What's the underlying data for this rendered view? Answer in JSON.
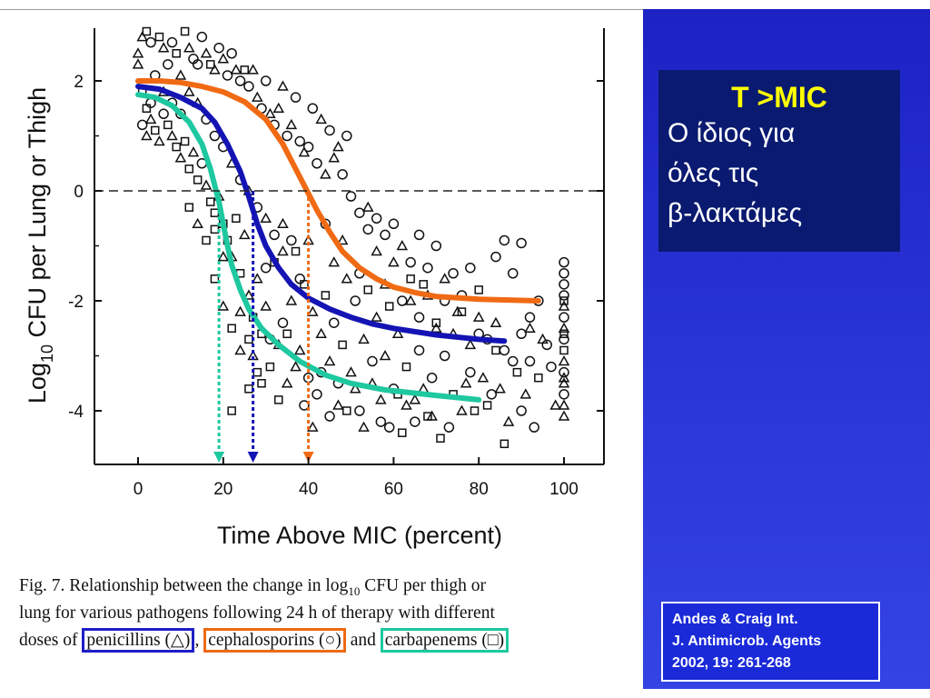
{
  "slide": {
    "title": "T >MIC",
    "subtitle_lines": [
      "Ο ίδιος για",
      "όλες τις",
      "β-λακτάμες"
    ],
    "reference_lines": [
      "Andes & Craig Int.",
      "J. Antimicrob. Agents",
      "2002, 19: 261-268"
    ],
    "caption": {
      "line1_a": "Fig. 7. Relationship between the change in log",
      "line1_sub": "10",
      "line1_b": " CFU per thigh or",
      "line2": "lung for various pathogens following 24 h of therapy with different",
      "line3_a": "doses of",
      "penicillins": "penicillins (△)",
      "sep1": ",",
      "cephalosporins": "cephalosporins (○)",
      "sep2": "and",
      "carbapenems": "carbapenems (□)"
    }
  },
  "chart_data": {
    "type": "scatter",
    "xlabel": "Time Above MIC (percent)",
    "ylabel_main": "Log",
    "ylabel_sub": "10",
    "ylabel_rest": " CFU per Lung or Thigh",
    "xlim": [
      -5,
      110
    ],
    "ylim": [
      -5,
      3
    ],
    "xticks": [
      0,
      20,
      40,
      60,
      80,
      100
    ],
    "yticks": [
      2,
      0,
      -2,
      -4
    ],
    "reference_line_y": 0,
    "colors": {
      "penicillins": "#1414b4",
      "cephalosporins": "#f06a14",
      "carbapenems": "#1ec8a0"
    },
    "series": [
      {
        "marker": "triangle",
        "color": "#1414b4",
        "curve": [
          [
            0,
            1.9
          ],
          [
            5,
            1.85
          ],
          [
            10,
            1.7
          ],
          [
            15,
            1.5
          ],
          [
            18,
            1.25
          ],
          [
            21,
            0.85
          ],
          [
            24,
            0.35
          ],
          [
            26,
            -0.1
          ],
          [
            28,
            -0.6
          ],
          [
            30,
            -1.0
          ],
          [
            33,
            -1.4
          ],
          [
            36,
            -1.7
          ],
          [
            40,
            -1.95
          ],
          [
            45,
            -2.15
          ],
          [
            50,
            -2.3
          ],
          [
            55,
            -2.42
          ],
          [
            60,
            -2.5
          ],
          [
            70,
            -2.62
          ],
          [
            80,
            -2.7
          ],
          [
            86,
            -2.73
          ]
        ],
        "mic_target_x": 27
      },
      {
        "marker": "circle",
        "color": "#f06a14",
        "curve": [
          [
            0,
            2.0
          ],
          [
            5,
            2.0
          ],
          [
            10,
            1.97
          ],
          [
            15,
            1.9
          ],
          [
            20,
            1.8
          ],
          [
            25,
            1.62
          ],
          [
            30,
            1.3
          ],
          [
            34,
            0.85
          ],
          [
            37,
            0.4
          ],
          [
            40,
            -0.05
          ],
          [
            42,
            -0.35
          ],
          [
            45,
            -0.75
          ],
          [
            48,
            -1.1
          ],
          [
            52,
            -1.4
          ],
          [
            56,
            -1.6
          ],
          [
            60,
            -1.75
          ],
          [
            65,
            -1.85
          ],
          [
            70,
            -1.92
          ],
          [
            80,
            -1.97
          ],
          [
            94,
            -2.0
          ]
        ],
        "mic_target_x": 40
      },
      {
        "marker": "square",
        "color": "#1ec8a0",
        "curve": [
          [
            0,
            1.75
          ],
          [
            4,
            1.7
          ],
          [
            8,
            1.55
          ],
          [
            12,
            1.25
          ],
          [
            15,
            0.85
          ],
          [
            17,
            0.4
          ],
          [
            19,
            -0.2
          ],
          [
            20,
            -0.6
          ],
          [
            21,
            -1.0
          ],
          [
            22,
            -1.35
          ],
          [
            24,
            -1.8
          ],
          [
            26,
            -2.15
          ],
          [
            29,
            -2.5
          ],
          [
            33,
            -2.8
          ],
          [
            38,
            -3.1
          ],
          [
            44,
            -3.35
          ],
          [
            50,
            -3.5
          ],
          [
            58,
            -3.62
          ],
          [
            70,
            -3.72
          ],
          [
            80,
            -3.8
          ]
        ],
        "mic_target_x": 19
      }
    ],
    "points": [
      [
        0,
        2.5,
        "t"
      ],
      [
        0,
        2.3,
        "t"
      ],
      [
        1,
        2.8,
        "t"
      ],
      [
        2,
        2.9,
        "s"
      ],
      [
        3,
        2.7,
        "c"
      ],
      [
        5,
        2.8,
        "s"
      ],
      [
        6,
        2.6,
        "t"
      ],
      [
        8,
        2.7,
        "c"
      ],
      [
        9,
        2.5,
        "s"
      ],
      [
        11,
        2.9,
        "s"
      ],
      [
        12,
        2.6,
        "t"
      ],
      [
        13,
        2.4,
        "c"
      ],
      [
        15,
        2.8,
        "c"
      ],
      [
        16,
        2.5,
        "t"
      ],
      [
        17,
        2.3,
        "s"
      ],
      [
        19,
        2.6,
        "c"
      ],
      [
        20,
        2.4,
        "t"
      ],
      [
        22,
        2.5,
        "c"
      ],
      [
        23,
        2.2,
        "t"
      ],
      [
        24,
        2.0,
        "c"
      ],
      [
        25,
        2.2,
        "s"
      ],
      [
        26,
        1.9,
        "c"
      ],
      [
        28,
        1.7,
        "t"
      ],
      [
        29,
        1.5,
        "c"
      ],
      [
        31,
        1.4,
        "t"
      ],
      [
        32,
        1.2,
        "c"
      ],
      [
        33,
        1.5,
        "t"
      ],
      [
        35,
        1.0,
        "c"
      ],
      [
        36,
        1.2,
        "t"
      ],
      [
        38,
        0.9,
        "c"
      ],
      [
        39,
        0.7,
        "t"
      ],
      [
        40,
        0.8,
        "c"
      ],
      [
        42,
        0.5,
        "c"
      ],
      [
        44,
        0.3,
        "t"
      ],
      [
        46,
        0.6,
        "t"
      ],
      [
        48,
        0.3,
        "c"
      ],
      [
        50,
        -0.1,
        "c"
      ],
      [
        52,
        -0.4,
        "c"
      ],
      [
        54,
        -0.3,
        "t"
      ],
      [
        56,
        -0.5,
        "c"
      ],
      [
        58,
        -0.8,
        "c"
      ],
      [
        60,
        -0.6,
        "c"
      ],
      [
        62,
        -1.0,
        "t"
      ],
      [
        64,
        -1.3,
        "c"
      ],
      [
        66,
        -0.8,
        "c"
      ],
      [
        68,
        -1.4,
        "c"
      ],
      [
        70,
        -1.0,
        "c"
      ],
      [
        72,
        -1.6,
        "t"
      ],
      [
        74,
        -1.5,
        "c"
      ],
      [
        76,
        -1.9,
        "c"
      ],
      [
        78,
        -1.4,
        "c"
      ],
      [
        80,
        -1.8,
        "s"
      ],
      [
        84,
        -1.2,
        "c"
      ],
      [
        86,
        -0.9,
        "c"
      ],
      [
        88,
        -1.5,
        "c"
      ],
      [
        90,
        -0.95,
        "c"
      ],
      [
        92,
        -2.5,
        "t"
      ],
      [
        94,
        -2.0,
        "c"
      ],
      [
        2,
        1.5,
        "s"
      ],
      [
        3,
        1.3,
        "t"
      ],
      [
        4,
        1.1,
        "s"
      ],
      [
        5,
        0.9,
        "t"
      ],
      [
        6,
        1.4,
        "c"
      ],
      [
        7,
        1.2,
        "s"
      ],
      [
        8,
        1.0,
        "t"
      ],
      [
        9,
        0.8,
        "s"
      ],
      [
        10,
        0.6,
        "t"
      ],
      [
        11,
        0.9,
        "s"
      ],
      [
        12,
        0.4,
        "s"
      ],
      [
        13,
        0.7,
        "t"
      ],
      [
        14,
        0.2,
        "s"
      ],
      [
        15,
        0.5,
        "c"
      ],
      [
        16,
        0.1,
        "t"
      ],
      [
        17,
        -0.2,
        "s"
      ],
      [
        18,
        -0.4,
        "s"
      ],
      [
        19,
        -0.1,
        "t"
      ],
      [
        20,
        -0.6,
        "s"
      ],
      [
        21,
        -0.9,
        "s"
      ],
      [
        22,
        -1.2,
        "t"
      ],
      [
        23,
        -0.5,
        "s"
      ],
      [
        24,
        -1.5,
        "s"
      ],
      [
        25,
        -0.8,
        "t"
      ],
      [
        26,
        -1.9,
        "t"
      ],
      [
        27,
        -2.3,
        "s"
      ],
      [
        28,
        -1.6,
        "t"
      ],
      [
        29,
        -2.6,
        "s"
      ],
      [
        30,
        -2.1,
        "t"
      ],
      [
        31,
        -3.2,
        "s"
      ],
      [
        32,
        -1.3,
        "s"
      ],
      [
        33,
        -2.8,
        "t"
      ],
      [
        34,
        -2.4,
        "c"
      ],
      [
        35,
        -3.5,
        "t"
      ],
      [
        36,
        -2.0,
        "t"
      ],
      [
        37,
        -1.1,
        "s"
      ],
      [
        38,
        -2.9,
        "t"
      ],
      [
        39,
        -1.7,
        "s"
      ],
      [
        40,
        -3.4,
        "c"
      ],
      [
        41,
        -2.2,
        "t"
      ],
      [
        42,
        -3.7,
        "c"
      ],
      [
        43,
        -2.6,
        "t"
      ],
      [
        44,
        -1.9,
        "s"
      ],
      [
        45,
        -3.1,
        "t"
      ],
      [
        46,
        -2.4,
        "c"
      ],
      [
        47,
        -3.9,
        "t"
      ],
      [
        48,
        -2.8,
        "s"
      ],
      [
        49,
        -1.6,
        "t"
      ],
      [
        50,
        -3.3,
        "t"
      ],
      [
        51,
        -2.0,
        "c"
      ],
      [
        52,
        -4.0,
        "c"
      ],
      [
        53,
        -2.7,
        "t"
      ],
      [
        54,
        -1.8,
        "s"
      ],
      [
        55,
        -3.5,
        "t"
      ],
      [
        56,
        -2.3,
        "t"
      ],
      [
        57,
        -4.2,
        "c"
      ],
      [
        58,
        -3.0,
        "t"
      ],
      [
        59,
        -2.1,
        "s"
      ],
      [
        60,
        -3.6,
        "c"
      ],
      [
        61,
        -2.6,
        "t"
      ],
      [
        62,
        -4.4,
        "s"
      ],
      [
        63,
        -3.2,
        "s"
      ],
      [
        64,
        -2.0,
        "t"
      ],
      [
        65,
        -3.8,
        "t"
      ],
      [
        66,
        -2.9,
        "c"
      ],
      [
        67,
        -1.7,
        "s"
      ],
      [
        68,
        -4.1,
        "s"
      ],
      [
        69,
        -3.4,
        "c"
      ],
      [
        70,
        -2.5,
        "t"
      ],
      [
        71,
        -4.5,
        "s"
      ],
      [
        72,
        -3.0,
        "c"
      ],
      [
        74,
        -3.7,
        "s"
      ],
      [
        75,
        -2.2,
        "t"
      ],
      [
        76,
        -4.0,
        "t"
      ],
      [
        78,
        -3.3,
        "c"
      ],
      [
        80,
        -2.6,
        "c"
      ],
      [
        82,
        -3.9,
        "s"
      ],
      [
        84,
        -2.9,
        "s"
      ],
      [
        85,
        -3.6,
        "t"
      ],
      [
        86,
        -4.6,
        "s"
      ],
      [
        88,
        -3.1,
        "c"
      ],
      [
        90,
        -4.0,
        "c"
      ],
      [
        92,
        -2.3,
        "c"
      ],
      [
        94,
        -3.4,
        "s"
      ],
      [
        96,
        -2.8,
        "c"
      ],
      [
        98,
        -3.9,
        "t"
      ],
      [
        100,
        -1.3,
        "c"
      ],
      [
        100,
        -1.5,
        "c"
      ],
      [
        100,
        -1.7,
        "c"
      ],
      [
        100,
        -1.9,
        "c"
      ],
      [
        100,
        -2.1,
        "t"
      ],
      [
        100,
        -2.3,
        "c"
      ],
      [
        100,
        -2.5,
        "t"
      ],
      [
        100,
        -2.7,
        "c"
      ],
      [
        100,
        -2.9,
        "s"
      ],
      [
        100,
        -3.1,
        "t"
      ],
      [
        100,
        -3.3,
        "c"
      ],
      [
        100,
        -3.5,
        "t"
      ],
      [
        100,
        -3.7,
        "c"
      ],
      [
        100,
        -3.9,
        "t"
      ],
      [
        100,
        -4.1,
        "t"
      ],
      [
        100,
        -2.0,
        "s"
      ],
      [
        100,
        -2.6,
        "s"
      ],
      [
        100,
        -3.4,
        "t"
      ],
      [
        22,
        -4.0,
        "s"
      ],
      [
        26,
        -3.6,
        "s"
      ],
      [
        20,
        -1.2,
        "t"
      ],
      [
        18,
        -0.7,
        "s"
      ],
      [
        24,
        -2.9,
        "t"
      ],
      [
        28,
        -3.3,
        "s"
      ],
      [
        30,
        -1.4,
        "c"
      ],
      [
        34,
        -0.6,
        "t"
      ],
      [
        36,
        -0.9,
        "c"
      ],
      [
        38,
        -1.6,
        "c"
      ],
      [
        40,
        -0.9,
        "t"
      ],
      [
        44,
        -0.6,
        "c"
      ],
      [
        46,
        -1.3,
        "t"
      ],
      [
        48,
        -0.9,
        "t"
      ],
      [
        52,
        -1.5,
        "c"
      ],
      [
        54,
        -0.7,
        "c"
      ],
      [
        56,
        -1.1,
        "t"
      ],
      [
        58,
        -1.7,
        "t"
      ],
      [
        60,
        -1.3,
        "t"
      ],
      [
        62,
        -2.0,
        "c"
      ],
      [
        64,
        -1.6,
        "s"
      ],
      [
        66,
        -2.3,
        "c"
      ],
      [
        68,
        -1.9,
        "t"
      ],
      [
        70,
        -2.4,
        "s"
      ],
      [
        72,
        -2.0,
        "c"
      ],
      [
        74,
        -2.6,
        "t"
      ],
      [
        76,
        -2.2,
        "s"
      ],
      [
        78,
        -2.8,
        "t"
      ],
      [
        80,
        -2.3,
        "t"
      ],
      [
        82,
        -2.7,
        "c"
      ],
      [
        84,
        -2.4,
        "t"
      ],
      [
        86,
        -2.9,
        "c"
      ],
      [
        90,
        -2.6,
        "c"
      ],
      [
        92,
        -3.1,
        "c"
      ],
      [
        95,
        -2.7,
        "t"
      ],
      [
        97,
        -3.2,
        "c"
      ],
      [
        45,
        1.1,
        "c"
      ],
      [
        47,
        0.8,
        "t"
      ],
      [
        49,
        1.0,
        "c"
      ],
      [
        43,
        1.3,
        "t"
      ],
      [
        41,
        1.5,
        "c"
      ],
      [
        37,
        1.7,
        "c"
      ],
      [
        34,
        1.9,
        "t"
      ],
      [
        30,
        2.0,
        "c"
      ],
      [
        27,
        2.2,
        "t"
      ],
      [
        21,
        2.1,
        "c"
      ],
      [
        18,
        2.2,
        "t"
      ],
      [
        14,
        2.3,
        "c"
      ],
      [
        10,
        2.1,
        "t"
      ],
      [
        7,
        2.3,
        "c"
      ],
      [
        4,
        2.1,
        "c"
      ],
      [
        1,
        1.8,
        "s"
      ],
      [
        1,
        1.2,
        "c"
      ],
      [
        2,
        1.0,
        "t"
      ],
      [
        3,
        1.6,
        "c"
      ],
      [
        6,
        1.8,
        "t"
      ],
      [
        8,
        1.6,
        "c"
      ],
      [
        10,
        1.4,
        "c"
      ],
      [
        12,
        1.8,
        "t"
      ],
      [
        14,
        1.6,
        "t"
      ],
      [
        16,
        1.3,
        "c"
      ],
      [
        18,
        1.0,
        "c"
      ],
      [
        20,
        0.8,
        "c"
      ],
      [
        22,
        0.5,
        "t"
      ],
      [
        24,
        0.2,
        "c"
      ],
      [
        26,
        0.0,
        "t"
      ],
      [
        28,
        -0.3,
        "c"
      ],
      [
        30,
        -0.5,
        "t"
      ],
      [
        32,
        -0.8,
        "c"
      ],
      [
        34,
        -1.1,
        "t"
      ],
      [
        16,
        -0.9,
        "s"
      ],
      [
        14,
        -0.6,
        "t"
      ],
      [
        12,
        -0.3,
        "s"
      ],
      [
        18,
        -1.6,
        "s"
      ],
      [
        20,
        -2.1,
        "t"
      ],
      [
        22,
        -2.5,
        "s"
      ],
      [
        24,
        -2.2,
        "t"
      ],
      [
        26,
        -2.7,
        "s"
      ],
      [
        27,
        -3.0,
        "t"
      ],
      [
        29,
        -3.5,
        "s"
      ],
      [
        31,
        -2.7,
        "c"
      ],
      [
        33,
        -3.8,
        "s"
      ],
      [
        35,
        -2.6,
        "s"
      ],
      [
        37,
        -3.2,
        "t"
      ],
      [
        39,
        -3.9,
        "c"
      ],
      [
        41,
        -4.3,
        "t"
      ],
      [
        43,
        -3.3,
        "c"
      ],
      [
        45,
        -4.1,
        "c"
      ],
      [
        47,
        -3.5,
        "c"
      ],
      [
        49,
        -4.0,
        "s"
      ],
      [
        51,
        -3.6,
        "t"
      ],
      [
        53,
        -4.3,
        "t"
      ],
      [
        55,
        -3.1,
        "c"
      ],
      [
        57,
        -3.8,
        "t"
      ],
      [
        59,
        -4.3,
        "c"
      ],
      [
        61,
        -3.7,
        "s"
      ],
      [
        63,
        -3.9,
        "t"
      ],
      [
        65,
        -4.2,
        "c"
      ],
      [
        67,
        -3.6,
        "t"
      ],
      [
        69,
        -4.1,
        "t"
      ],
      [
        73,
        -4.3,
        "c"
      ],
      [
        77,
        -3.5,
        "t"
      ],
      [
        79,
        -4.0,
        "s"
      ],
      [
        81,
        -3.4,
        "t"
      ],
      [
        83,
        -3.7,
        "c"
      ],
      [
        87,
        -4.2,
        "t"
      ],
      [
        89,
        -3.3,
        "s"
      ],
      [
        91,
        -3.7,
        "t"
      ],
      [
        93,
        -4.3,
        "c"
      ]
    ]
  }
}
